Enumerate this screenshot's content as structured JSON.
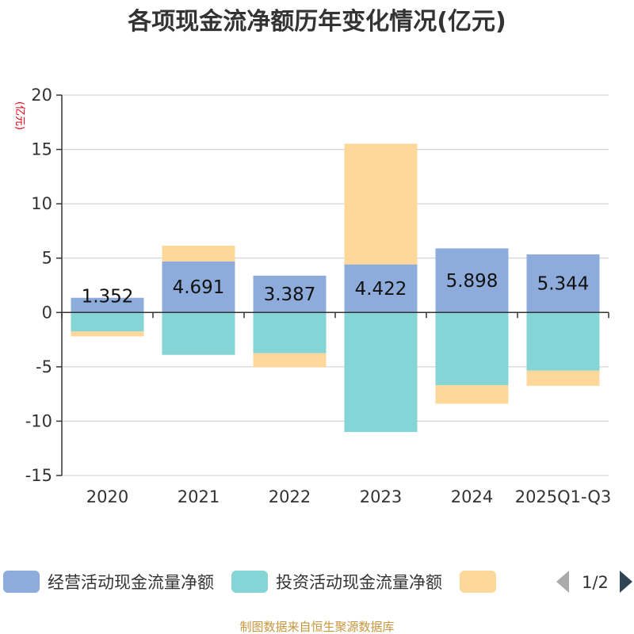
{
  "chart_data": {
    "type": "bar",
    "stacked": true,
    "title": "各项现金流净额历年变化情况(亿元)",
    "ylabel": "(亿元)",
    "ylim": [
      -15,
      20
    ],
    "yticks": [
      20,
      15,
      10,
      5,
      0,
      -5,
      -10,
      -15
    ],
    "categories": [
      "2020",
      "2021",
      "2022",
      "2023",
      "2024",
      "2025Q1-Q3"
    ],
    "series": [
      {
        "name": "经营活动现金流量净额",
        "color": "#8eacdb",
        "values": [
          1.352,
          4.691,
          3.387,
          4.422,
          5.898,
          5.344
        ],
        "labels": [
          "1.352",
          "4.691",
          "3.387",
          "4.422",
          "5.898",
          "5.344"
        ]
      },
      {
        "name": "投资活动现金流量净额",
        "color": "#85d4d6",
        "values": [
          -1.75,
          -3.9,
          -3.75,
          -11.0,
          -6.7,
          -5.35
        ]
      },
      {
        "name": "",
        "color": "#fdd89a",
        "values": [
          -0.45,
          1.45,
          -1.3,
          11.1,
          -1.7,
          -1.4
        ]
      }
    ],
    "legend": {
      "page": "1/2",
      "position": "bottom"
    },
    "source": "制图数据来自恒生聚源数据库"
  }
}
